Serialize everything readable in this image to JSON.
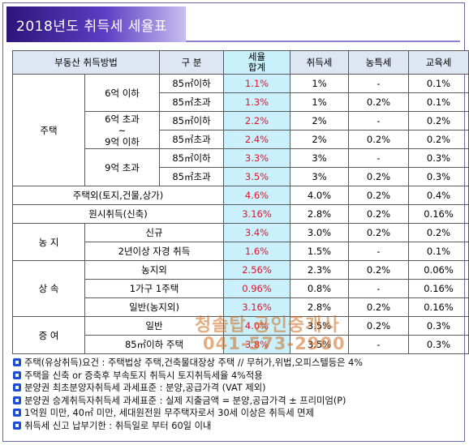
{
  "title": "2018년도 취득세 세율표",
  "headers": {
    "method": "부동산 취득방법",
    "category": "구 분",
    "total_rate": "세율\n합계",
    "acq_tax": "취득세",
    "farm_tax": "농특세",
    "edu_tax": "교육세"
  },
  "groups": {
    "housing": "주택",
    "price_6": "6억 이하",
    "price_6_9": "6억 초과\n~\n9억 이하",
    "price_9": "9억 초과",
    "farmland": "농 지",
    "inherit": "상 속",
    "gift": "증 여"
  },
  "rows": [
    {
      "area": "85㎡이하",
      "total": "1.1%",
      "acq": "1%",
      "farm": "-",
      "edu": "0.1%"
    },
    {
      "area": "85㎡초과",
      "total": "1.3%",
      "acq": "1%",
      "farm": "0.2%",
      "edu": "0.1%"
    },
    {
      "area": "85㎡이하",
      "total": "2.2%",
      "acq": "2%",
      "farm": "-",
      "edu": "0.2%"
    },
    {
      "area": "85㎡초과",
      "total": "2.4%",
      "acq": "2%",
      "farm": "0.2%",
      "edu": "0.2%"
    },
    {
      "area": "85㎡이하",
      "total": "3.3%",
      "acq": "3%",
      "farm": "-",
      "edu": "0.3%"
    },
    {
      "area": "85㎡초과",
      "total": "3.5%",
      "acq": "3%",
      "farm": "0.2%",
      "edu": "0.3%"
    },
    {
      "label": "주택외(토지,건물,상가)",
      "total": "4.6%",
      "acq": "4.0%",
      "farm": "0.2%",
      "edu": "0.4%"
    },
    {
      "label": "원시취득(신축)",
      "total": "3.16%",
      "acq": "2.8%",
      "farm": "0.2%",
      "edu": "0.16%"
    },
    {
      "label": "신규",
      "total": "3.4%",
      "acq": "3.0%",
      "farm": "0.2%",
      "edu": "0.2%"
    },
    {
      "label": "2년이상 자경 취득",
      "total": "1.6%",
      "acq": "1.5%",
      "farm": "-",
      "edu": "0.1%"
    },
    {
      "label": "농지외",
      "total": "2.56%",
      "acq": "2.3%",
      "farm": "0.2%",
      "edu": "0.06%"
    },
    {
      "label": "1가구 1주택",
      "total": "0.96%",
      "acq": "0.8%",
      "farm": "-",
      "edu": "0.16%"
    },
    {
      "label": "일반(농지외)",
      "total": "3.16%",
      "acq": "2.8%",
      "farm": "0.2%",
      "edu": "0.16%"
    },
    {
      "label": "일반",
      "total": "4.0%",
      "acq": "3.5%",
      "farm": "0.2%",
      "edu": "0.3%"
    },
    {
      "label": "85㎡이하 주택",
      "total": "3.8%",
      "acq": "3.5%",
      "farm": "-",
      "edu": "0.3%"
    }
  ],
  "notes": [
    "주택(유상취득)요건 : 주택법상 주택,건축물대장상 주택 // 무허가,위법,오피스텔등은 4%",
    "주택을 신축 or 증축후 부속토지 취득시 토지취득세율 4%적용",
    "분양권 최초분양자취득세 과세표준 : 분양,공급가격 (VAT 제외)",
    "분양권 승계취득자취득세 과세표준 : 실제 지출금액 = 분양,공급가격 ± 프리미엄(P)",
    "1억원 미만, 40㎡ 미만, 세대원전원 무주택자로서 30세 이상은 취득세 면제",
    "취득세 신고 납부기한 : 취득일로 부터 60일 이내"
  ],
  "watermark": {
    "line1": "청솔탑 공인중개사",
    "line2": "041-573-2900"
  },
  "colors": {
    "rate_bg": "#c9f0fb",
    "rate_text": "#e0142c",
    "header_bg": "#dfe6f3",
    "title_bg": "#3d24a0"
  },
  "icons": {
    "note_bullet": "blue-square-bullet-icon"
  }
}
